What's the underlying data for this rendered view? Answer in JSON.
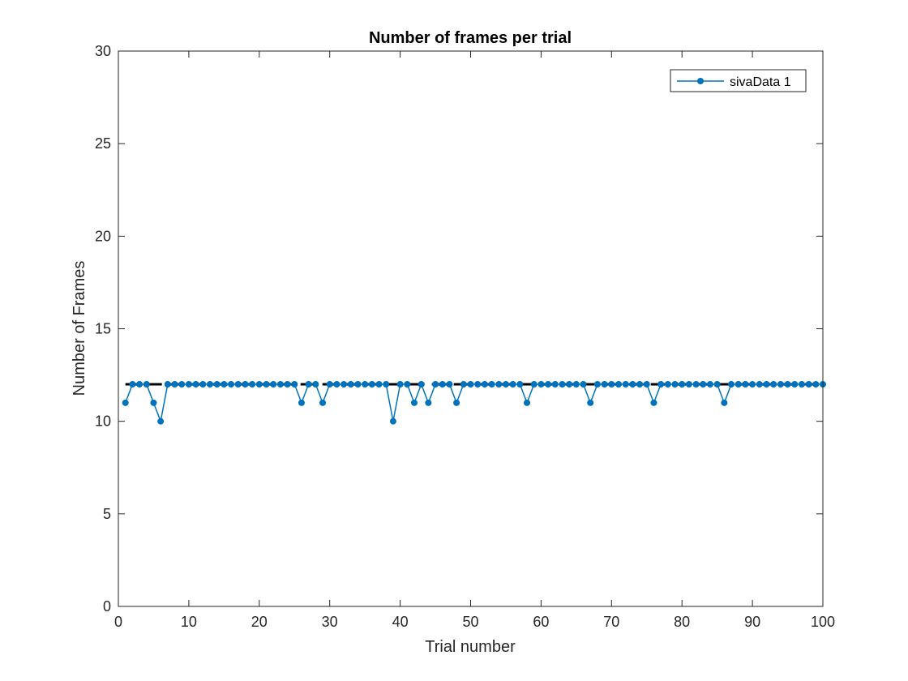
{
  "chart_data": {
    "type": "line",
    "title": "Number of frames per trial",
    "xlabel": "Trial number",
    "ylabel": "Number of Frames",
    "xlim": [
      0,
      100
    ],
    "ylim": [
      0,
      30
    ],
    "xticks": [
      0,
      10,
      20,
      30,
      40,
      50,
      60,
      70,
      80,
      90,
      100
    ],
    "yticks": [
      0,
      5,
      10,
      15,
      20,
      25,
      30
    ],
    "grid": false,
    "legend": {
      "position": "top-right",
      "entries": [
        "sivaData 1"
      ]
    },
    "reference_line": {
      "y": 12,
      "x": [
        1,
        100
      ],
      "style": "dashed",
      "color": "#000000"
    },
    "series": [
      {
        "name": "sivaData 1",
        "color": "#0072BD",
        "marker": "circle",
        "x": [
          1,
          2,
          3,
          4,
          5,
          6,
          7,
          8,
          9,
          10,
          11,
          12,
          13,
          14,
          15,
          16,
          17,
          18,
          19,
          20,
          21,
          22,
          23,
          24,
          25,
          26,
          27,
          28,
          29,
          30,
          31,
          32,
          33,
          34,
          35,
          36,
          37,
          38,
          39,
          40,
          41,
          42,
          43,
          44,
          45,
          46,
          47,
          48,
          49,
          50,
          51,
          52,
          53,
          54,
          55,
          56,
          57,
          58,
          59,
          60,
          61,
          62,
          63,
          64,
          65,
          66,
          67,
          68,
          69,
          70,
          71,
          72,
          73,
          74,
          75,
          76,
          77,
          78,
          79,
          80,
          81,
          82,
          83,
          84,
          85,
          86,
          87,
          88,
          89,
          90,
          91,
          92,
          93,
          94,
          95,
          96,
          97,
          98,
          99,
          100
        ],
        "values": [
          11,
          12,
          12,
          12,
          11,
          10,
          12,
          12,
          12,
          12,
          12,
          12,
          12,
          12,
          12,
          12,
          12,
          12,
          12,
          12,
          12,
          12,
          12,
          12,
          12,
          11,
          12,
          12,
          11,
          12,
          12,
          12,
          12,
          12,
          12,
          12,
          12,
          12,
          10,
          12,
          12,
          11,
          12,
          11,
          12,
          12,
          12,
          11,
          12,
          12,
          12,
          12,
          12,
          12,
          12,
          12,
          12,
          11,
          12,
          12,
          12,
          12,
          12,
          12,
          12,
          12,
          11,
          12,
          12,
          12,
          12,
          12,
          12,
          12,
          12,
          11,
          12,
          12,
          12,
          12,
          12,
          12,
          12,
          12,
          12,
          11,
          12,
          12,
          12,
          12,
          12,
          12,
          12,
          12,
          12,
          12,
          12,
          12,
          12,
          12
        ]
      }
    ]
  }
}
